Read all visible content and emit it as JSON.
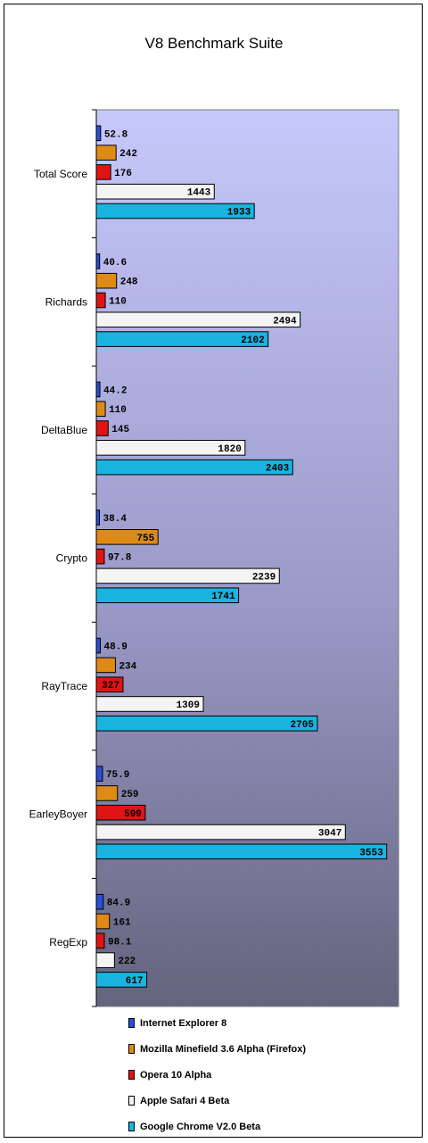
{
  "chart_data": {
    "type": "bar",
    "orientation": "horizontal",
    "title": "V8 Benchmark Suite",
    "xlabel": "",
    "ylabel": "",
    "xlim": [
      0,
      3600
    ],
    "grid": false,
    "legend_position": "bottom",
    "plot_background": "gradient lavender to slate",
    "categories": [
      "Total Score",
      "Richards",
      "DeltaBlue",
      "Crypto",
      "RayTrace",
      "EarleyBoyer",
      "RegExp"
    ],
    "series": [
      {
        "name": "Internet Explorer 8",
        "color": "#2a4ed8",
        "values": [
          52.8,
          40.6,
          44.2,
          38.4,
          48.9,
          75.9,
          84.9
        ],
        "labels": [
          "52.8",
          "40.6",
          "44.2",
          "38.4",
          "48.9",
          "75.9",
          "84.9"
        ]
      },
      {
        "name": "Mozilla Minefield 3.6 Alpha (Firefox)",
        "color": "#e08a16",
        "values": [
          242,
          248,
          110,
          755,
          234,
          259,
          161
        ],
        "labels": [
          "242",
          "248",
          "110",
          "755",
          "234",
          "259",
          "161"
        ]
      },
      {
        "name": "Opera 10 Alpha",
        "color": "#e01414",
        "values": [
          176,
          110,
          145,
          97.8,
          327,
          599,
          98.1
        ],
        "labels": [
          "176",
          "110",
          "145",
          "97.8",
          "327",
          "599",
          "98.1"
        ]
      },
      {
        "name": "Apple Safari 4 Beta",
        "color": "#f4f4f4",
        "values": [
          1443,
          2494,
          1820,
          2239,
          1309,
          3047,
          222
        ],
        "labels": [
          "1443",
          "2494",
          "1820",
          "2239",
          "1309",
          "3047",
          "222"
        ]
      },
      {
        "name": "Google Chrome V2.0 Beta",
        "color": "#1ab4e0",
        "values": [
          1933,
          2102,
          2403,
          1741,
          2705,
          3553,
          617
        ],
        "labels": [
          "1933",
          "2102",
          "2403",
          "1741",
          "2705",
          "3553",
          "617"
        ]
      }
    ]
  }
}
